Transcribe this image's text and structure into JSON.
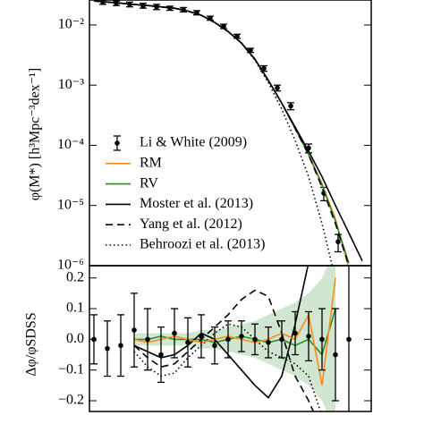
{
  "chart_data": [
    {
      "type": "line",
      "ylabel": "φ(M*) [h³Mpc⁻³dex⁻¹]",
      "log_y": true,
      "legend": "lower left",
      "xlim": [
        9.0,
        12.15
      ],
      "ylim": [
        1e-06,
        0.026
      ],
      "yticks": [
        {
          "value": 0.01,
          "label": "10⁻²"
        },
        {
          "value": 0.001,
          "label": "10⁻³"
        },
        {
          "value": 0.0001,
          "label": "10⁻⁴"
        },
        {
          "value": 1e-05,
          "label": "10⁻⁵"
        },
        {
          "value": 1e-06,
          "label": "10⁻⁶"
        }
      ],
      "x": [
        9.05,
        9.2,
        9.35,
        9.5,
        9.65,
        9.8,
        9.95,
        10.1,
        10.25,
        10.4,
        10.55,
        10.7,
        10.85,
        11.0,
        11.15,
        11.3,
        11.45,
        11.6,
        11.75,
        11.9,
        12.05
      ],
      "series": [
        {
          "name": "Li & White (2009)",
          "color": "#000000",
          "marker": "o",
          "x": [
            9.15,
            9.3,
            9.45,
            9.6,
            9.75,
            9.9,
            10.05,
            10.2,
            10.35,
            10.5,
            10.65,
            10.8,
            10.95,
            11.1,
            11.25,
            11.45,
            11.62,
            11.78
          ],
          "values": [
            0.024,
            0.023,
            0.022,
            0.021,
            0.02,
            0.019,
            0.018,
            0.016,
            0.013,
            0.0095,
            0.0065,
            0.0038,
            0.0019,
            0.0009,
            0.00045,
            9e-05,
            1.6e-05,
            2.5e-06
          ],
          "errors": [
            0.002,
            0.002,
            0.002,
            0.002,
            0.002,
            0.0015,
            0.0015,
            0.0013,
            0.001,
            0.0008,
            0.0005,
            0.0003,
            0.0002,
            0.0001,
            6e-05,
            1.5e-05,
            4e-06,
            8e-07
          ]
        },
        {
          "name": "RM",
          "color": "#ff8c1a",
          "dash": "solid",
          "values": [
            0.025,
            0.024,
            0.023,
            0.022,
            0.021,
            0.02,
            0.019,
            0.017,
            0.0145,
            0.011,
            0.0078,
            0.005,
            0.0027,
            0.0012,
            0.0005,
            0.00019,
            7e-05,
            2.3e-05,
            6e-06,
            9e-07,
            null
          ]
        },
        {
          "name": "RV",
          "color": "#2e8b2e",
          "dash": "solid",
          "values": [
            0.025,
            0.024,
            0.023,
            0.022,
            0.021,
            0.02,
            0.019,
            0.017,
            0.0145,
            0.011,
            0.0078,
            0.005,
            0.0027,
            0.0012,
            0.0005,
            0.00019,
            7e-05,
            2.2e-05,
            5.5e-06,
            1.1e-06,
            null
          ]
        },
        {
          "name": "Moster et al. (2013)",
          "color": "#000000",
          "dash": "solid",
          "values": [
            0.025,
            0.024,
            0.023,
            0.022,
            0.021,
            0.02,
            0.019,
            0.017,
            0.0145,
            0.011,
            0.0078,
            0.005,
            0.0027,
            0.0012,
            0.0005,
            0.0002,
            8e-05,
            3e-05,
            1e-05,
            3.5e-06,
            1.2e-06
          ]
        },
        {
          "name": "Yang et al. (2012)",
          "color": "#000000",
          "dash": "dashed",
          "values": [
            0.025,
            0.024,
            0.023,
            0.022,
            0.021,
            0.02,
            0.019,
            0.017,
            0.0145,
            0.011,
            0.0078,
            0.005,
            0.0027,
            0.0012,
            0.0005,
            0.00019,
            7e-05,
            2e-05,
            5e-06,
            1e-06,
            null
          ]
        },
        {
          "name": "Behroozi et al. (2013)",
          "color": "#000000",
          "dash": "dotted",
          "values": [
            0.025,
            0.024,
            0.023,
            0.022,
            0.021,
            0.02,
            0.019,
            0.017,
            0.0145,
            0.011,
            0.0078,
            0.005,
            0.0026,
            0.0011,
            0.0004,
            0.00012,
            3e-05,
            5e-06,
            6e-07,
            null,
            null
          ]
        }
      ]
    },
    {
      "type": "line",
      "ylabel": "Δφ/φSDSS",
      "xlim": [
        9.0,
        12.15
      ],
      "ylim": [
        -0.235,
        0.24
      ],
      "yticks": [
        {
          "value": 0.2,
          "label": "0.2"
        },
        {
          "value": 0.1,
          "label": "0.1"
        },
        {
          "value": 0,
          "label": "0.0"
        },
        {
          "value": -0.1,
          "label": "−0.1"
        },
        {
          "value": -0.2,
          "label": "−0.2"
        }
      ],
      "x": [
        9.05,
        9.2,
        9.35,
        9.5,
        9.65,
        9.8,
        9.95,
        10.1,
        10.25,
        10.4,
        10.55,
        10.7,
        10.85,
        11.0,
        11.15,
        11.3,
        11.45,
        11.6,
        11.75,
        11.9,
        12.05
      ],
      "series": [
        {
          "color": "#2e8b2e",
          "dash": "solid",
          "values": [
            null,
            null,
            null,
            0.0,
            0.0,
            0.01,
            0.0,
            0.0,
            0.0,
            -0.01,
            0.0,
            0.01,
            0.0,
            -0.01,
            0.0,
            -0.02,
            0.0,
            -0.05,
            0.1,
            null,
            null
          ],
          "band_lower": [
            null,
            null,
            null,
            -0.02,
            -0.02,
            -0.02,
            -0.02,
            -0.02,
            -0.03,
            -0.03,
            -0.04,
            -0.05,
            -0.06,
            -0.08,
            -0.1,
            -0.12,
            -0.15,
            -0.2,
            -0.3,
            null,
            null
          ],
          "band_upper": [
            null,
            null,
            null,
            0.02,
            0.02,
            0.02,
            0.02,
            0.02,
            0.03,
            0.03,
            0.04,
            0.05,
            0.06,
            0.08,
            0.1,
            0.12,
            0.15,
            0.2,
            0.3,
            null,
            null
          ]
        },
        {
          "color": "#000000",
          "dash": "solid",
          "values": [
            null,
            null,
            null,
            -0.02,
            -0.04,
            -0.06,
            -0.05,
            -0.02,
            0.02,
            0.0,
            -0.05,
            -0.1,
            -0.15,
            -0.19,
            -0.12,
            0.05,
            0.25,
            null,
            null,
            null,
            null
          ]
        },
        {
          "color": "#000000",
          "dash": "dashed",
          "values": [
            null,
            null,
            null,
            -0.02,
            -0.06,
            -0.09,
            -0.08,
            -0.04,
            0.0,
            0.04,
            0.08,
            0.13,
            0.16,
            0.14,
            0.02,
            -0.12,
            -0.2,
            -0.3,
            null,
            null,
            null
          ]
        },
        {
          "color": "#000000",
          "dash": "dotted",
          "values": [
            null,
            null,
            null,
            -0.04,
            -0.09,
            -0.12,
            -0.11,
            -0.06,
            -0.02,
            0.02,
            0.05,
            0.04,
            0.0,
            -0.04,
            -0.06,
            -0.08,
            -0.12,
            -0.25,
            null,
            null,
            null
          ]
        },
        {
          "color": "#ff8c1a",
          "dash": "solid",
          "values": [
            null,
            null,
            null,
            0.0,
            -0.01,
            0.0,
            0.01,
            0.0,
            -0.01,
            0.0,
            0.01,
            0.0,
            -0.01,
            0.0,
            0.02,
            0.0,
            0.08,
            -0.15,
            0.2,
            null,
            null
          ]
        },
        {
          "color": "#000000",
          "marker": "o",
          "x": [
            9.05,
            9.2,
            9.35,
            9.5,
            9.65,
            9.8,
            9.95,
            10.1,
            10.25,
            10.4,
            10.55,
            10.7,
            10.85,
            11.0,
            11.15,
            11.3,
            11.45,
            11.6,
            11.75,
            11.9
          ],
          "values": [
            0.0,
            -0.03,
            -0.02,
            0.03,
            0.0,
            -0.05,
            0.02,
            -0.01,
            0.01,
            -0.02,
            0.0,
            0.01,
            0.0,
            -0.01,
            0.0,
            0.02,
            0.01,
            0.0,
            -0.05,
            0.0
          ],
          "errors": [
            0.08,
            0.09,
            0.1,
            0.12,
            0.1,
            0.09,
            0.08,
            0.08,
            0.07,
            0.06,
            0.06,
            0.05,
            0.05,
            0.05,
            0.06,
            0.07,
            0.08,
            0.1,
            0.15,
            0.25
          ]
        }
      ]
    }
  ]
}
